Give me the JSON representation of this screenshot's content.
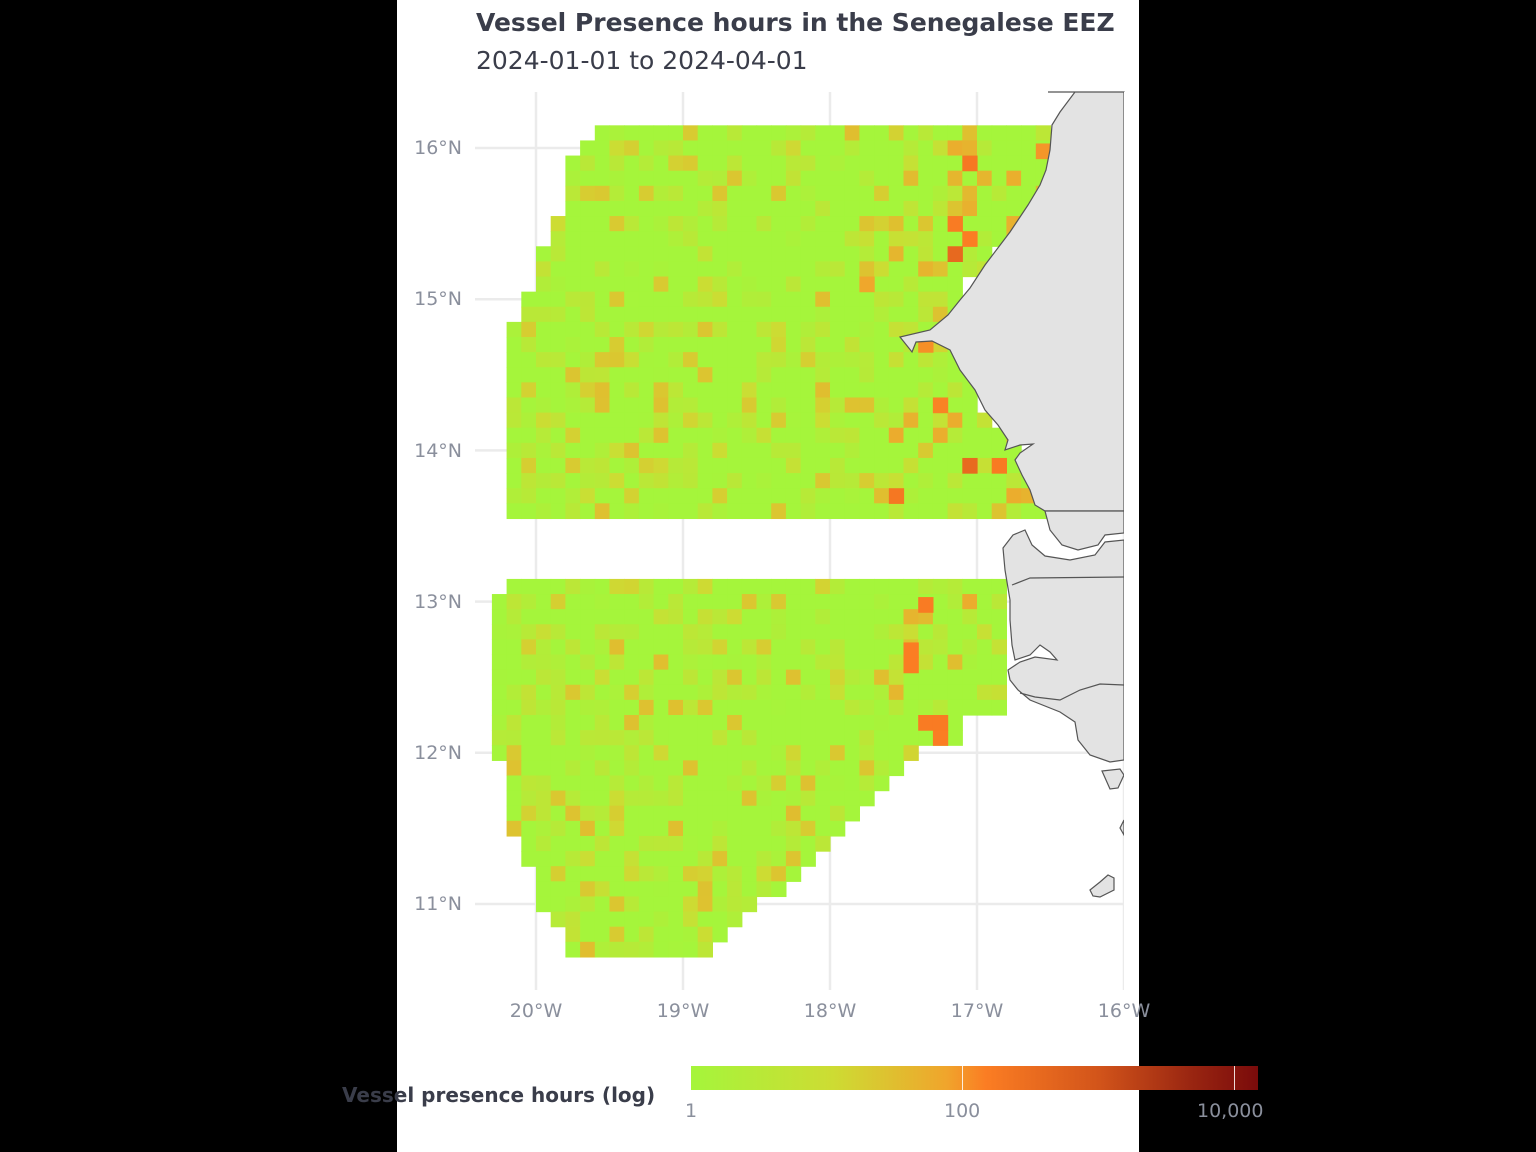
{
  "chart_data": {
    "type": "heatmap",
    "title": "Vessel Presence hours in the Senegalese EEZ",
    "subtitle": "2024-01-01 to 2024-04-01",
    "xlabel": "",
    "ylabel": "",
    "x_ticks": [
      "20°W",
      "19°W",
      "18°W",
      "17°W",
      "16°W"
    ],
    "y_ticks": [
      "16°N",
      "15°N",
      "14°N",
      "13°N",
      "12°N",
      "11°N"
    ],
    "xlim": [
      -20.25,
      -16.0
    ],
    "ylim": [
      10.55,
      16.35
    ],
    "grid": true,
    "cell_size_deg": 0.1,
    "legend": {
      "title": "Vessel presence hours (log)",
      "position": "bottom",
      "scale": "log",
      "range": [
        1,
        10000
      ],
      "ticks": [
        "1",
        "100",
        "10,000"
      ],
      "colors": [
        "#a5f53b",
        "#f0a52c",
        "#fb7d23",
        "#7a0b0b"
      ]
    },
    "hotspots": [
      {
        "lon": -17.05,
        "lat": 15.9,
        "value": 150
      },
      {
        "lon": -16.55,
        "lat": 15.98,
        "value": 80
      },
      {
        "lon": -17.15,
        "lat": 15.5,
        "value": 130
      },
      {
        "lon": -17.05,
        "lat": 15.4,
        "value": 120
      },
      {
        "lon": -17.15,
        "lat": 15.3,
        "value": 300
      },
      {
        "lon": -17.75,
        "lat": 15.1,
        "value": 60
      },
      {
        "lon": -17.35,
        "lat": 14.7,
        "value": 90
      },
      {
        "lon": -17.25,
        "lat": 14.3,
        "value": 110
      },
      {
        "lon": -17.05,
        "lat": 13.9,
        "value": 280
      },
      {
        "lon": -16.85,
        "lat": 13.9,
        "value": 140
      },
      {
        "lon": -17.55,
        "lat": 13.7,
        "value": 160
      },
      {
        "lon": -17.35,
        "lat": 12.98,
        "value": 130
      },
      {
        "lon": -17.45,
        "lat": 12.68,
        "value": 120
      },
      {
        "lon": -17.45,
        "lat": 12.58,
        "value": 120
      },
      {
        "lon": -17.35,
        "lat": 12.2,
        "value": 130
      },
      {
        "lon": -17.25,
        "lat": 12.2,
        "value": 130
      },
      {
        "lon": -17.25,
        "lat": 12.1,
        "value": 120
      }
    ],
    "background_value_range": [
      1,
      30
    ],
    "regions": [
      {
        "name": "Northern Senegal EEZ",
        "lat_range": [
          13.55,
          16.15
        ],
        "lon_range": [
          -20.15,
          -16.5
        ]
      },
      {
        "name": "Southern Senegal EEZ",
        "lat_range": [
          10.65,
          13.15
        ],
        "lon_range": [
          -20.25,
          -16.75
        ]
      }
    ]
  },
  "ui": {
    "title": "Vessel Presence hours in the Senegalese EEZ",
    "subtitle": "2024-01-01 to 2024-04-01",
    "legend_title": "Vessel presence hours (log)",
    "legend_ticks": [
      "1",
      "100",
      "10,000"
    ],
    "x_ticks": [
      "20°W",
      "19°W",
      "18°W",
      "17°W",
      "16°W"
    ],
    "y_ticks": [
      "16°N",
      "15°N",
      "14°N",
      "13°N",
      "12°N",
      "11°N"
    ]
  }
}
